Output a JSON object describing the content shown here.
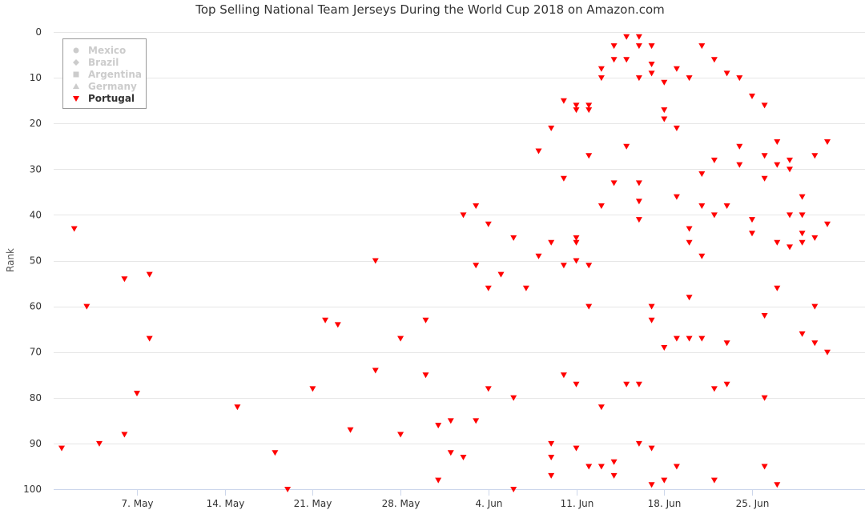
{
  "chart_data": {
    "type": "scatter",
    "title": "Top Selling National Team Jerseys During the World Cup 2018 on Amazon.com",
    "xlabel": "",
    "ylabel": "Rank",
    "x_axis": {
      "type": "date",
      "range": [
        "2018-05-01",
        "2018-07-04"
      ],
      "ticks": [
        {
          "date": "2018-05-07",
          "label": "7. May"
        },
        {
          "date": "2018-05-14",
          "label": "14. May"
        },
        {
          "date": "2018-05-21",
          "label": "21. May"
        },
        {
          "date": "2018-05-28",
          "label": "28. May"
        },
        {
          "date": "2018-06-04",
          "label": "4. Jun"
        },
        {
          "date": "2018-06-11",
          "label": "11. Jun"
        },
        {
          "date": "2018-06-18",
          "label": "18. Jun"
        },
        {
          "date": "2018-06-25",
          "label": "25. Jun"
        }
      ]
    },
    "y_axis": {
      "reversed": true,
      "range": [
        0,
        100
      ],
      "ticks": [
        0,
        10,
        20,
        30,
        40,
        50,
        60,
        70,
        80,
        90,
        100
      ]
    },
    "grid": true,
    "legend": {
      "placement": "top-left",
      "items": [
        {
          "name": "Mexico",
          "symbol": "circle",
          "visible": false
        },
        {
          "name": "Brazil",
          "symbol": "diamond",
          "visible": false
        },
        {
          "name": "Argentina",
          "symbol": "square",
          "visible": false
        },
        {
          "name": "Germany",
          "symbol": "triangle",
          "visible": false
        },
        {
          "name": "Portugal",
          "symbol": "triangle-down",
          "visible": true
        }
      ]
    },
    "colors": {
      "portugal": "#ff0000",
      "hidden_legend": "#cccccc",
      "legend_active": "#333333"
    },
    "series": [
      {
        "name": "Portugal",
        "points": [
          [
            "2018-05-01",
            91
          ],
          [
            "2018-05-02",
            43
          ],
          [
            "2018-05-03",
            60
          ],
          [
            "2018-05-04",
            90
          ],
          [
            "2018-05-06",
            54
          ],
          [
            "2018-05-06",
            88
          ],
          [
            "2018-05-07",
            79
          ],
          [
            "2018-05-08",
            53
          ],
          [
            "2018-05-08",
            67
          ],
          [
            "2018-05-15",
            82
          ],
          [
            "2018-05-18",
            92
          ],
          [
            "2018-05-19",
            100
          ],
          [
            "2018-05-21",
            78
          ],
          [
            "2018-05-22",
            63
          ],
          [
            "2018-05-23",
            64
          ],
          [
            "2018-05-24",
            87
          ],
          [
            "2018-05-26",
            50
          ],
          [
            "2018-05-26",
            74
          ],
          [
            "2018-05-28",
            67
          ],
          [
            "2018-05-28",
            88
          ],
          [
            "2018-05-30",
            63
          ],
          [
            "2018-05-30",
            75
          ],
          [
            "2018-05-31",
            86
          ],
          [
            "2018-05-31",
            98
          ],
          [
            "2018-06-01",
            85
          ],
          [
            "2018-06-01",
            92
          ],
          [
            "2018-06-02",
            40
          ],
          [
            "2018-06-02",
            93
          ],
          [
            "2018-06-03",
            38
          ],
          [
            "2018-06-03",
            51
          ],
          [
            "2018-06-03",
            85
          ],
          [
            "2018-06-04",
            42
          ],
          [
            "2018-06-04",
            56
          ],
          [
            "2018-06-04",
            78
          ],
          [
            "2018-06-05",
            53
          ],
          [
            "2018-06-06",
            45
          ],
          [
            "2018-06-06",
            80
          ],
          [
            "2018-06-06",
            100
          ],
          [
            "2018-06-07",
            56
          ],
          [
            "2018-06-08",
            26
          ],
          [
            "2018-06-08",
            49
          ],
          [
            "2018-06-09",
            21
          ],
          [
            "2018-06-09",
            46
          ],
          [
            "2018-06-09",
            90
          ],
          [
            "2018-06-09",
            93
          ],
          [
            "2018-06-09",
            97
          ],
          [
            "2018-06-10",
            15
          ],
          [
            "2018-06-10",
            32
          ],
          [
            "2018-06-10",
            51
          ],
          [
            "2018-06-10",
            75
          ],
          [
            "2018-06-11",
            16
          ],
          [
            "2018-06-11",
            17
          ],
          [
            "2018-06-11",
            45
          ],
          [
            "2018-06-11",
            46
          ],
          [
            "2018-06-11",
            50
          ],
          [
            "2018-06-11",
            77
          ],
          [
            "2018-06-11",
            91
          ],
          [
            "2018-06-12",
            16
          ],
          [
            "2018-06-12",
            17
          ],
          [
            "2018-06-12",
            27
          ],
          [
            "2018-06-12",
            51
          ],
          [
            "2018-06-12",
            60
          ],
          [
            "2018-06-12",
            95
          ],
          [
            "2018-06-13",
            8
          ],
          [
            "2018-06-13",
            10
          ],
          [
            "2018-06-13",
            38
          ],
          [
            "2018-06-13",
            82
          ],
          [
            "2018-06-13",
            95
          ],
          [
            "2018-06-14",
            3
          ],
          [
            "2018-06-14",
            6
          ],
          [
            "2018-06-14",
            33
          ],
          [
            "2018-06-14",
            94
          ],
          [
            "2018-06-14",
            97
          ],
          [
            "2018-06-15",
            1
          ],
          [
            "2018-06-15",
            6
          ],
          [
            "2018-06-15",
            25
          ],
          [
            "2018-06-15",
            77
          ],
          [
            "2018-06-16",
            1
          ],
          [
            "2018-06-16",
            3
          ],
          [
            "2018-06-16",
            10
          ],
          [
            "2018-06-16",
            33
          ],
          [
            "2018-06-16",
            37
          ],
          [
            "2018-06-16",
            41
          ],
          [
            "2018-06-16",
            77
          ],
          [
            "2018-06-16",
            90
          ],
          [
            "2018-06-17",
            3
          ],
          [
            "2018-06-17",
            7
          ],
          [
            "2018-06-17",
            9
          ],
          [
            "2018-06-17",
            60
          ],
          [
            "2018-06-17",
            63
          ],
          [
            "2018-06-17",
            91
          ],
          [
            "2018-06-17",
            99
          ],
          [
            "2018-06-18",
            11
          ],
          [
            "2018-06-18",
            17
          ],
          [
            "2018-06-18",
            19
          ],
          [
            "2018-06-18",
            69
          ],
          [
            "2018-06-18",
            98
          ],
          [
            "2018-06-19",
            8
          ],
          [
            "2018-06-19",
            21
          ],
          [
            "2018-06-19",
            36
          ],
          [
            "2018-06-19",
            67
          ],
          [
            "2018-06-19",
            95
          ],
          [
            "2018-06-20",
            10
          ],
          [
            "2018-06-20",
            43
          ],
          [
            "2018-06-20",
            46
          ],
          [
            "2018-06-20",
            58
          ],
          [
            "2018-06-20",
            67
          ],
          [
            "2018-06-21",
            3
          ],
          [
            "2018-06-21",
            31
          ],
          [
            "2018-06-21",
            38
          ],
          [
            "2018-06-21",
            49
          ],
          [
            "2018-06-21",
            67
          ],
          [
            "2018-06-22",
            6
          ],
          [
            "2018-06-22",
            28
          ],
          [
            "2018-06-22",
            40
          ],
          [
            "2018-06-22",
            78
          ],
          [
            "2018-06-22",
            98
          ],
          [
            "2018-06-23",
            9
          ],
          [
            "2018-06-23",
            38
          ],
          [
            "2018-06-23",
            68
          ],
          [
            "2018-06-23",
            77
          ],
          [
            "2018-06-24",
            10
          ],
          [
            "2018-06-24",
            25
          ],
          [
            "2018-06-24",
            29
          ],
          [
            "2018-06-25",
            14
          ],
          [
            "2018-06-25",
            41
          ],
          [
            "2018-06-25",
            44
          ],
          [
            "2018-06-26",
            16
          ],
          [
            "2018-06-26",
            27
          ],
          [
            "2018-06-26",
            32
          ],
          [
            "2018-06-26",
            62
          ],
          [
            "2018-06-26",
            80
          ],
          [
            "2018-06-26",
            95
          ],
          [
            "2018-06-27",
            24
          ],
          [
            "2018-06-27",
            29
          ],
          [
            "2018-06-27",
            46
          ],
          [
            "2018-06-27",
            56
          ],
          [
            "2018-06-27",
            99
          ],
          [
            "2018-06-28",
            28
          ],
          [
            "2018-06-28",
            30
          ],
          [
            "2018-06-28",
            40
          ],
          [
            "2018-06-28",
            47
          ],
          [
            "2018-06-29",
            36
          ],
          [
            "2018-06-29",
            40
          ],
          [
            "2018-06-29",
            44
          ],
          [
            "2018-06-29",
            46
          ],
          [
            "2018-06-29",
            66
          ],
          [
            "2018-06-30",
            27
          ],
          [
            "2018-06-30",
            45
          ],
          [
            "2018-06-30",
            60
          ],
          [
            "2018-06-30",
            68
          ],
          [
            "2018-07-01",
            24
          ],
          [
            "2018-07-01",
            42
          ],
          [
            "2018-07-01",
            70
          ]
        ]
      }
    ]
  }
}
